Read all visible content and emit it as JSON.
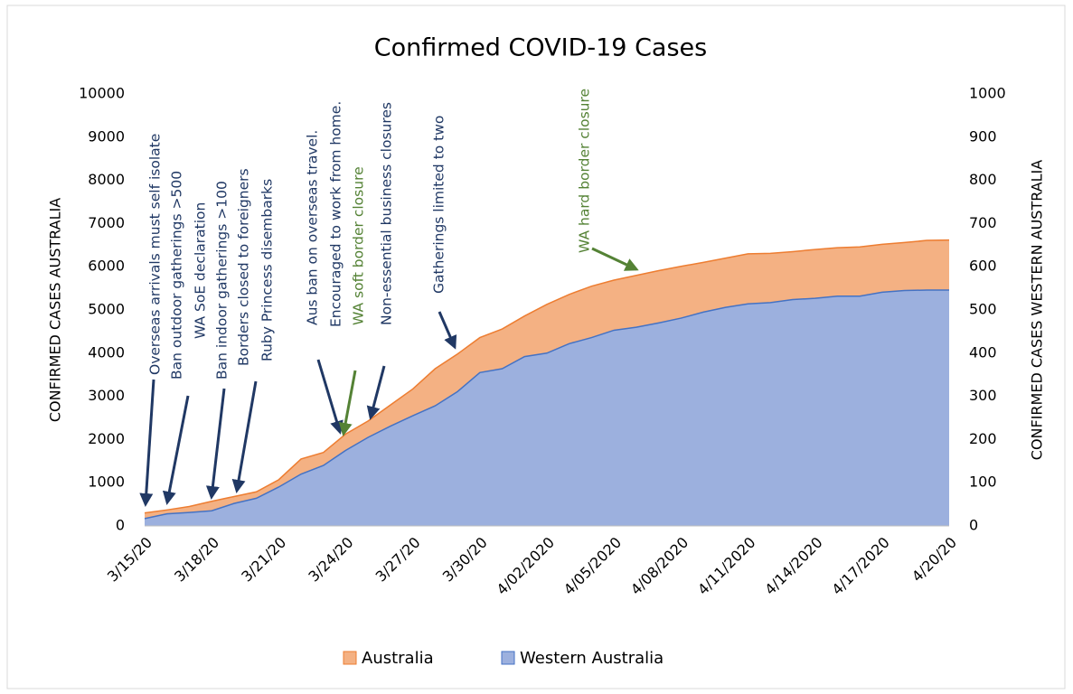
{
  "chart_data": {
    "type": "area",
    "title": "Confirmed COVID-19 Cases",
    "ylabel": "CONFIRMED CASES AUSTRALIA",
    "y2label": "CONFIRMED CASES WESTERN AUSTRALIA",
    "categories": [
      "3/15/20",
      null,
      null,
      "3/18/20",
      null,
      null,
      "3/21/20",
      null,
      null,
      "3/24/20",
      null,
      null,
      "3/27/20",
      null,
      null,
      "3/30/20",
      null,
      null,
      "4/02/2020",
      null,
      null,
      "4/05/2020",
      null,
      null,
      "4/08/2020",
      null,
      null,
      "4/11/2020",
      null,
      null,
      "4/14/2020",
      null,
      null,
      "4/17/2020",
      null,
      null,
      "4/20/20"
    ],
    "series": [
      {
        "name": "Australia",
        "color": "#f4b183",
        "stroke": "#ed7d31",
        "values": [
          300,
          370,
          450,
          570,
          680,
          790,
          1070,
          1550,
          1700,
          2130,
          2430,
          2800,
          3170,
          3640,
          3980,
          4360,
          4560,
          4860,
          5130,
          5360,
          5550,
          5690,
          5800,
          5910,
          6010,
          6100,
          6200,
          6300,
          6310,
          6350,
          6400,
          6440,
          6460,
          6520,
          6560,
          6610,
          6620
        ]
      },
      {
        "name": "Western Australia",
        "color": "#9cb0de",
        "stroke": "#4472c4",
        "axis": "y2",
        "values": [
          17,
          28,
          31,
          35,
          52,
          64,
          90,
          120,
          140,
          175,
          205,
          231,
          255,
          278,
          311,
          355,
          364,
          392,
          400,
          422,
          436,
          453,
          460,
          470,
          481,
          495,
          506,
          514,
          517,
          524,
          527,
          532,
          532,
          541,
          545,
          546,
          546
        ]
      }
    ],
    "ylim": [
      0,
      10000
    ],
    "yticks": [
      0,
      1000,
      2000,
      3000,
      4000,
      5000,
      6000,
      7000,
      8000,
      9000,
      10000
    ],
    "y2lim": [
      0,
      1000
    ],
    "y2ticks": [
      0,
      100,
      200,
      300,
      400,
      500,
      600,
      700,
      800,
      900,
      1000
    ],
    "grid": false,
    "legend": "bottom",
    "annotations": [
      {
        "text": "Overseas arrivals must self isolate",
        "color": "#203864"
      },
      {
        "text": "Ban outdoor gatherings >500",
        "color": "#203864"
      },
      {
        "text": "WA SoE declaration",
        "color": "#203864"
      },
      {
        "text": "Ban indoor gatherings >100",
        "color": "#203864"
      },
      {
        "text": "Borders closed to foreigners",
        "color": "#203864"
      },
      {
        "text": "Ruby Princess disembarks",
        "color": "#203864"
      },
      {
        "text": "Aus ban on overseas travel.",
        "color": "#203864"
      },
      {
        "text": "Encouraged to work from home.",
        "color": "#203864"
      },
      {
        "text": "WA soft border closure",
        "color": "#548235"
      },
      {
        "text": "Non-essential business closures",
        "color": "#203864"
      },
      {
        "text": "Gatherings limited to two",
        "color": "#203864"
      },
      {
        "text": "WA hard border closure",
        "color": "#548235"
      }
    ]
  }
}
